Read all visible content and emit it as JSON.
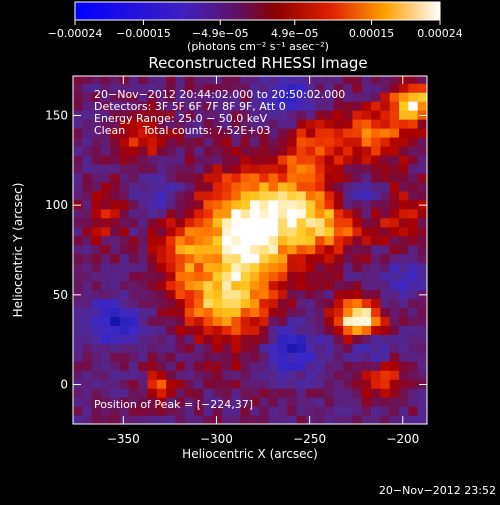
{
  "chart_data": {
    "type": "heatmap",
    "title": "Reconstructed RHESSI Image",
    "xlabel": "Heliocentric X (arcsec)",
    "ylabel": "Heliocentric Y (arcsec)",
    "xlim": [
      -377,
      -187
    ],
    "ylim": [
      -22,
      172
    ],
    "x_ticks": [
      -350,
      -300,
      -250,
      -200
    ],
    "y_ticks": [
      0,
      50,
      100,
      150
    ],
    "x_tick_labels": [
      "−350",
      "−300",
      "−250",
      "−200"
    ],
    "y_tick_labels": [
      "0",
      "50",
      "100",
      "150"
    ],
    "grid": false,
    "colorbar": {
      "min": -0.00024,
      "max": 0.00024,
      "ticks": [
        -0.00024,
        -0.00015,
        -4.9e-05,
        4.9e-05,
        0.00015,
        0.00024
      ],
      "tick_labels": [
        "−0.00024",
        "−0.00015",
        "−4.9e−05",
        "4.9e−05",
        "0.00015",
        "0.00024"
      ],
      "units": "(photons cm⁻² s⁻¹ asec⁻²)",
      "colormap": [
        "#000000",
        "#0000ff",
        "#5a1a9c",
        "#8a1040",
        "#d00000",
        "#ff6a00",
        "#ffd000",
        "#ffffff"
      ]
    },
    "peak": {
      "x": -224,
      "y": 37
    },
    "blobs": [
      {
        "x": -224,
        "y": 37,
        "amp": 1.0,
        "sx": 9,
        "sy": 7
      },
      {
        "x": -195,
        "y": 158,
        "amp": 0.85,
        "sx": 8,
        "sy": 7
      },
      {
        "x": -288,
        "y": 70,
        "amp": 0.8,
        "sx": 16,
        "sy": 30
      },
      {
        "x": -270,
        "y": 95,
        "amp": 0.65,
        "sx": 18,
        "sy": 18
      },
      {
        "x": -240,
        "y": 92,
        "amp": 0.6,
        "sx": 15,
        "sy": 14
      },
      {
        "x": -215,
        "y": 140,
        "amp": 0.55,
        "sx": 14,
        "sy": 12
      },
      {
        "x": -320,
        "y": 75,
        "amp": 0.5,
        "sx": 10,
        "sy": 14
      },
      {
        "x": -250,
        "y": 130,
        "amp": 0.45,
        "sx": 10,
        "sy": 12
      },
      {
        "x": -340,
        "y": 140,
        "amp": 0.45,
        "sx": 10,
        "sy": 10
      },
      {
        "x": -305,
        "y": 45,
        "amp": 0.4,
        "sx": 14,
        "sy": 10
      },
      {
        "x": -330,
        "y": 0,
        "amp": 0.45,
        "sx": 6,
        "sy": 6
      },
      {
        "x": -210,
        "y": 5,
        "amp": 0.4,
        "sx": 10,
        "sy": 8
      },
      {
        "x": -200,
        "y": 95,
        "amp": 0.35,
        "sx": 9,
        "sy": 12
      },
      {
        "x": -360,
        "y": 95,
        "amp": 0.3,
        "sx": 8,
        "sy": 12
      },
      {
        "x": -355,
        "y": 35,
        "amp": -0.55,
        "sx": 9,
        "sy": 9
      },
      {
        "x": -262,
        "y": 160,
        "amp": -0.45,
        "sx": 9,
        "sy": 8
      },
      {
        "x": -225,
        "y": 105,
        "amp": -0.5,
        "sx": 10,
        "sy": 7
      },
      {
        "x": -260,
        "y": 20,
        "amp": -0.5,
        "sx": 11,
        "sy": 10
      },
      {
        "x": -215,
        "y": 20,
        "amp": -0.35,
        "sx": 8,
        "sy": 7
      },
      {
        "x": -330,
        "y": 105,
        "amp": -0.3,
        "sx": 8,
        "sy": 10
      },
      {
        "x": -200,
        "y": 60,
        "amp": -0.3,
        "sx": 8,
        "sy": 9
      }
    ]
  },
  "legend_lines": [
    "20−Nov−2012 20:44:02.000 to 20:50:02.000",
    "Detectors: 3F 5F 6F 7F 8F 9F, Att 0",
    "Energy Range: 25.0 − 50.0 keV",
    "Clean     Total counts: 7.52E+03"
  ],
  "peak_label": "Position of Peak = [−224,37]",
  "footer_timestamp": "20−Nov−2012 23:52"
}
